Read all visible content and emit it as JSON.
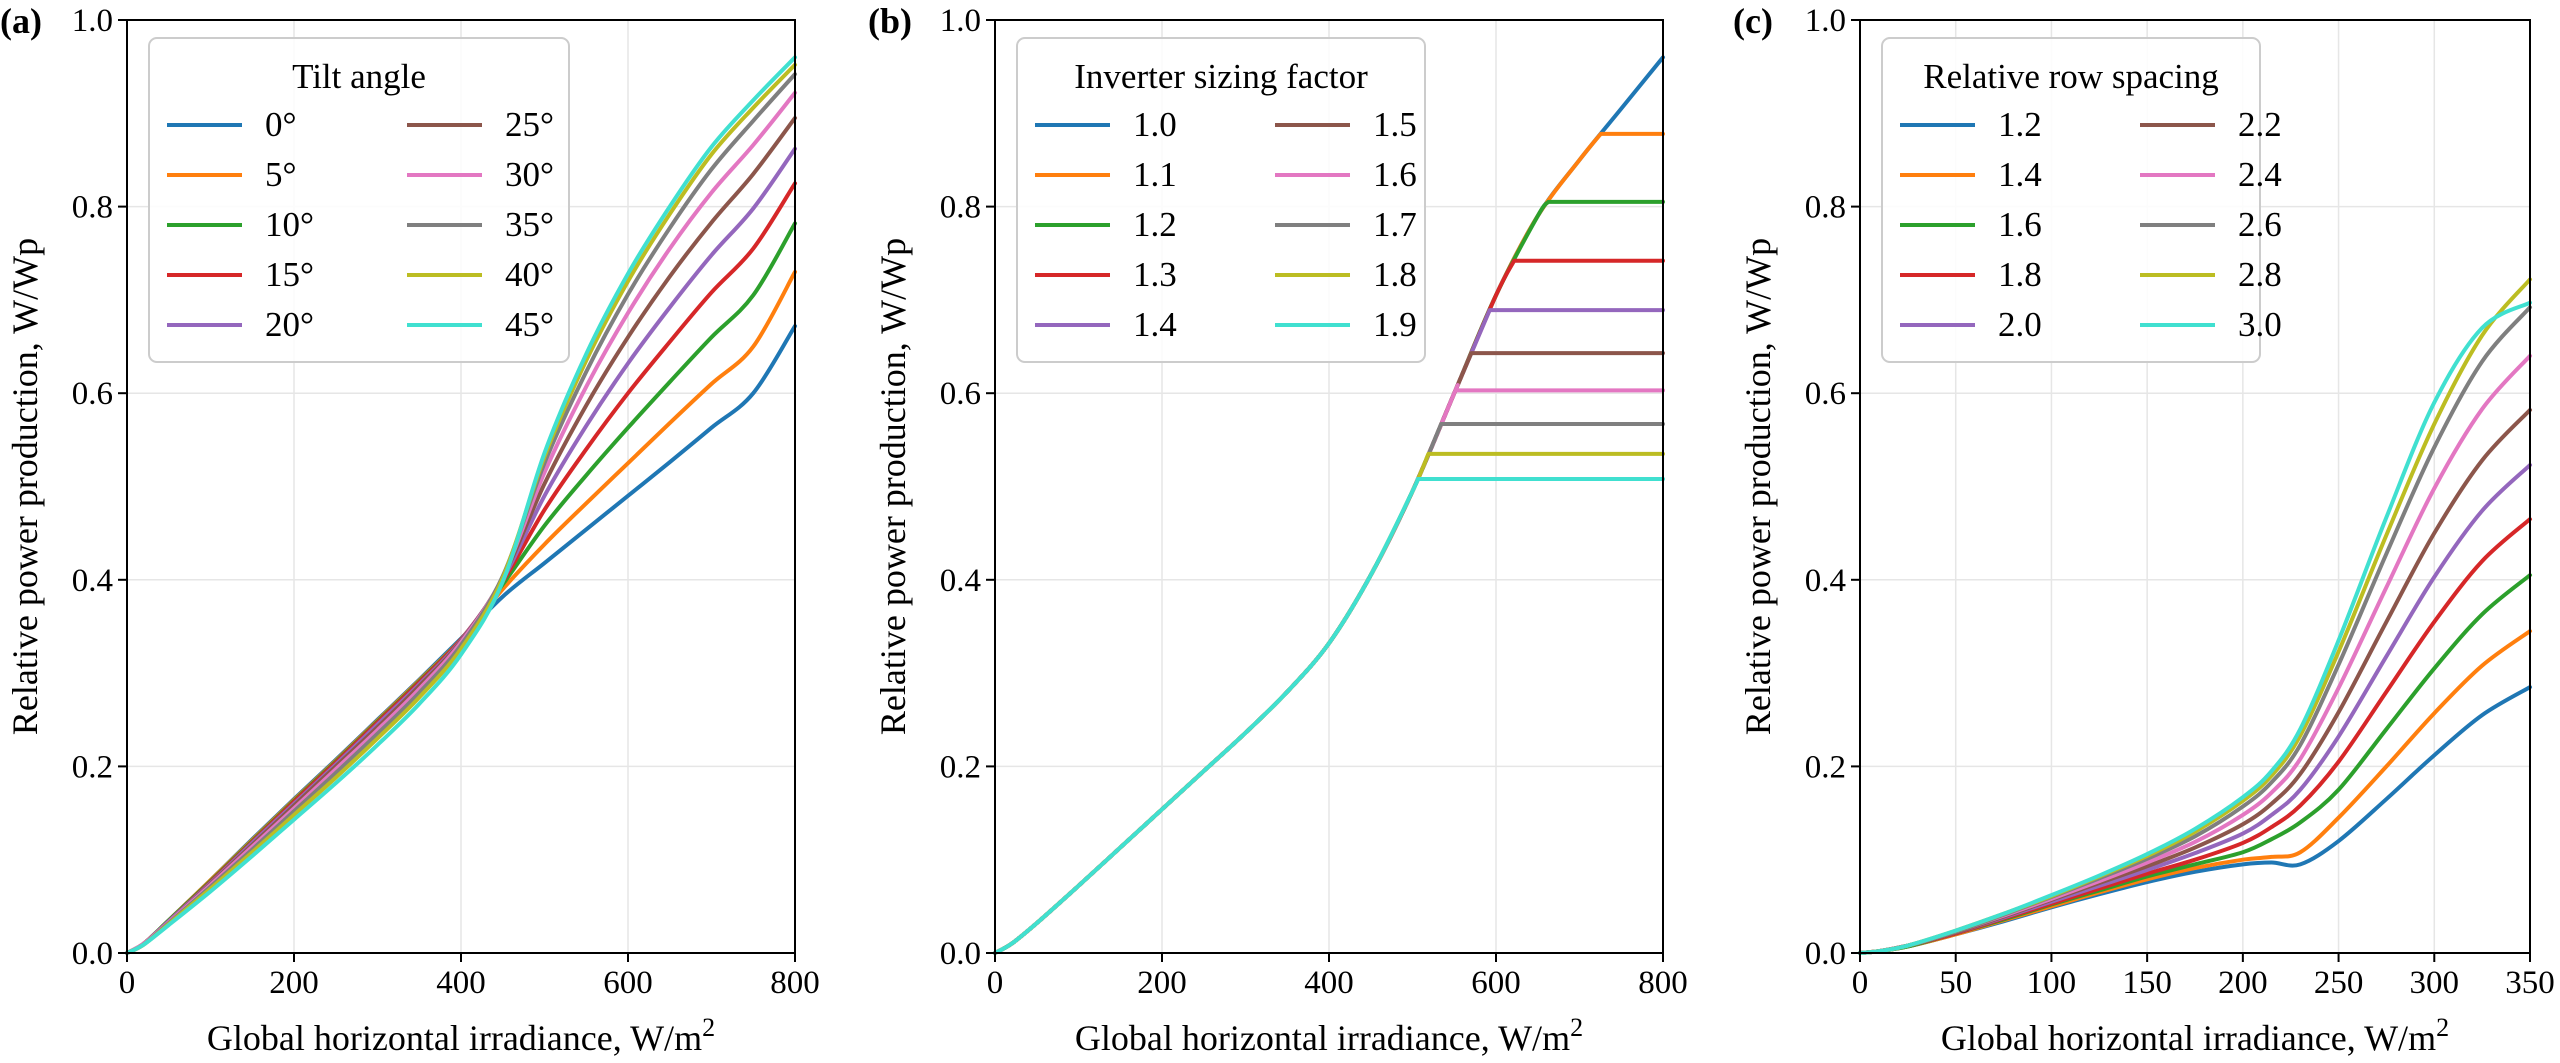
{
  "chart_data": [
    {
      "type": "line",
      "panel_label": "(a)",
      "xlabel": "Global horizontal irradiance, W/m",
      "xlabel_sup": "2",
      "ylabel": "Relative power production, W/Wp",
      "xlim": [
        0,
        800
      ],
      "ylim": [
        0,
        1.0
      ],
      "xticks": [
        "0",
        "200",
        "400",
        "600",
        "800"
      ],
      "yticks": [
        "0.0",
        "0.2",
        "0.4",
        "0.6",
        "0.8",
        "1.0"
      ],
      "grid": true,
      "legend": {
        "title": "Tilt angle",
        "location": "upper-left",
        "columns": 2
      },
      "x": [
        0,
        20,
        50,
        100,
        150,
        200,
        250,
        300,
        350,
        400,
        450,
        500,
        550,
        600,
        650,
        700,
        750,
        800
      ],
      "series": [
        {
          "name": "0°",
          "color": "#1f77b4",
          "values": [
            0,
            0.01,
            0.035,
            0.078,
            0.122,
            0.165,
            0.207,
            0.25,
            0.293,
            0.337,
            0.382,
            0.418,
            0.454,
            0.49,
            0.526,
            0.563,
            0.6,
            0.672
          ]
        },
        {
          "name": "5°",
          "color": "#ff7f0e",
          "values": [
            0,
            0.01,
            0.035,
            0.078,
            0.121,
            0.164,
            0.206,
            0.249,
            0.292,
            0.336,
            0.39,
            0.438,
            0.482,
            0.525,
            0.568,
            0.61,
            0.65,
            0.73
          ]
        },
        {
          "name": "10°",
          "color": "#2ca02c",
          "values": [
            0,
            0.01,
            0.035,
            0.077,
            0.12,
            0.163,
            0.205,
            0.248,
            0.291,
            0.336,
            0.395,
            0.458,
            0.512,
            0.563,
            0.612,
            0.66,
            0.705,
            0.782
          ]
        },
        {
          "name": "15°",
          "color": "#d62728",
          "values": [
            0,
            0.01,
            0.034,
            0.076,
            0.119,
            0.162,
            0.204,
            0.247,
            0.29,
            0.336,
            0.398,
            0.475,
            0.54,
            0.6,
            0.655,
            0.708,
            0.755,
            0.825
          ]
        },
        {
          "name": "20°",
          "color": "#9467bd",
          "values": [
            0,
            0.01,
            0.034,
            0.075,
            0.118,
            0.16,
            0.202,
            0.245,
            0.288,
            0.335,
            0.4,
            0.49,
            0.565,
            0.632,
            0.692,
            0.748,
            0.798,
            0.862
          ]
        },
        {
          "name": "25°",
          "color": "#8c564b",
          "values": [
            0,
            0.01,
            0.033,
            0.074,
            0.116,
            0.158,
            0.2,
            0.242,
            0.286,
            0.334,
            0.402,
            0.503,
            0.587,
            0.66,
            0.725,
            0.783,
            0.835,
            0.895
          ]
        },
        {
          "name": "30°",
          "color": "#e377c2",
          "values": [
            0,
            0.01,
            0.033,
            0.073,
            0.114,
            0.155,
            0.197,
            0.239,
            0.283,
            0.333,
            0.403,
            0.515,
            0.607,
            0.686,
            0.755,
            0.815,
            0.866,
            0.922
          ]
        },
        {
          "name": "35°",
          "color": "#7f7f7f",
          "values": [
            0,
            0.009,
            0.032,
            0.071,
            0.111,
            0.152,
            0.193,
            0.235,
            0.279,
            0.33,
            0.404,
            0.525,
            0.623,
            0.706,
            0.777,
            0.84,
            0.892,
            0.942
          ]
        },
        {
          "name": "40°",
          "color": "#bcbd22",
          "values": [
            0,
            0.009,
            0.031,
            0.069,
            0.108,
            0.148,
            0.188,
            0.23,
            0.274,
            0.326,
            0.402,
            0.532,
            0.635,
            0.72,
            0.792,
            0.856,
            0.906,
            0.952
          ]
        },
        {
          "name": "45°",
          "color": "#40e0d0",
          "values": [
            0,
            0.009,
            0.03,
            0.066,
            0.104,
            0.143,
            0.182,
            0.223,
            0.267,
            0.32,
            0.398,
            0.536,
            0.642,
            0.728,
            0.8,
            0.864,
            0.914,
            0.96
          ]
        }
      ]
    },
    {
      "type": "line",
      "panel_label": "(b)",
      "xlabel": "Global horizontal irradiance, W/m",
      "xlabel_sup": "2",
      "ylabel": "Relative power production, W/Wp",
      "xlim": [
        0,
        800
      ],
      "ylim": [
        0,
        1.0
      ],
      "xticks": [
        "0",
        "200",
        "400",
        "600",
        "800"
      ],
      "yticks": [
        "0.0",
        "0.2",
        "0.4",
        "0.6",
        "0.8",
        "1.0"
      ],
      "grid": true,
      "legend": {
        "title": "Inverter sizing factor",
        "location": "upper-left",
        "columns": 2
      },
      "base_curve": {
        "x": [
          0,
          20,
          50,
          100,
          150,
          200,
          250,
          300,
          350,
          400,
          450,
          500,
          550,
          600,
          650,
          700,
          750,
          800
        ],
        "y": [
          0,
          0.01,
          0.032,
          0.072,
          0.113,
          0.154,
          0.195,
          0.236,
          0.28,
          0.332,
          0.405,
          0.495,
          0.6,
          0.705,
          0.79,
          0.85,
          0.905,
          0.96
        ]
      },
      "series": [
        {
          "name": "1.0",
          "color": "#1f77b4",
          "clip_level": 0.96
        },
        {
          "name": "1.1",
          "color": "#ff7f0e",
          "clip_level": 0.878
        },
        {
          "name": "1.2",
          "color": "#2ca02c",
          "clip_level": 0.805
        },
        {
          "name": "1.3",
          "color": "#d62728",
          "clip_level": 0.742
        },
        {
          "name": "1.4",
          "color": "#9467bd",
          "clip_level": 0.689
        },
        {
          "name": "1.5",
          "color": "#8c564b",
          "clip_level": 0.643
        },
        {
          "name": "1.6",
          "color": "#e377c2",
          "clip_level": 0.603
        },
        {
          "name": "1.7",
          "color": "#7f7f7f",
          "clip_level": 0.567
        },
        {
          "name": "1.8",
          "color": "#bcbd22",
          "clip_level": 0.535
        },
        {
          "name": "1.9",
          "color": "#40e0d0",
          "clip_level": 0.508
        }
      ]
    },
    {
      "type": "line",
      "panel_label": "(c)",
      "xlabel": "Global horizontal irradiance, W/m",
      "xlabel_sup": "2",
      "ylabel": "Relative power production, W/Wp",
      "xlim": [
        0,
        350
      ],
      "ylim": [
        0,
        1.0
      ],
      "xticks": [
        "0",
        "50",
        "100",
        "150",
        "200",
        "250",
        "300",
        "350"
      ],
      "yticks": [
        "0.0",
        "0.2",
        "0.4",
        "0.6",
        "0.8",
        "1.0"
      ],
      "grid": true,
      "legend": {
        "title": "Relative row spacing",
        "location": "upper-left",
        "columns": 2
      },
      "x": [
        0,
        10,
        25,
        50,
        75,
        100,
        125,
        150,
        175,
        200,
        215,
        230,
        250,
        275,
        300,
        325,
        350
      ],
      "series": [
        {
          "name": "1.2",
          "color": "#1f77b4",
          "values": [
            0,
            0.002,
            0.007,
            0.02,
            0.034,
            0.049,
            0.063,
            0.076,
            0.087,
            0.095,
            0.097,
            0.095,
            0.12,
            0.165,
            0.212,
            0.255,
            0.285
          ]
        },
        {
          "name": "1.4",
          "color": "#ff7f0e",
          "values": [
            0,
            0.002,
            0.007,
            0.02,
            0.035,
            0.05,
            0.065,
            0.079,
            0.091,
            0.1,
            0.103,
            0.108,
            0.145,
            0.2,
            0.257,
            0.308,
            0.345
          ]
        },
        {
          "name": "1.6",
          "color": "#2ca02c",
          "values": [
            0,
            0.002,
            0.007,
            0.021,
            0.036,
            0.052,
            0.067,
            0.082,
            0.095,
            0.108,
            0.122,
            0.14,
            0.175,
            0.24,
            0.305,
            0.363,
            0.405
          ]
        },
        {
          "name": "1.8",
          "color": "#d62728",
          "values": [
            0,
            0.002,
            0.008,
            0.021,
            0.037,
            0.053,
            0.069,
            0.085,
            0.1,
            0.118,
            0.135,
            0.158,
            0.205,
            0.28,
            0.355,
            0.42,
            0.465
          ]
        },
        {
          "name": "2.0",
          "color": "#9467bd",
          "values": [
            0,
            0.002,
            0.008,
            0.022,
            0.038,
            0.055,
            0.072,
            0.089,
            0.107,
            0.128,
            0.148,
            0.175,
            0.232,
            0.318,
            0.403,
            0.474,
            0.523
          ]
        },
        {
          "name": "2.2",
          "color": "#8c564b",
          "values": [
            0,
            0.002,
            0.008,
            0.022,
            0.039,
            0.057,
            0.075,
            0.093,
            0.113,
            0.138,
            0.16,
            0.192,
            0.258,
            0.355,
            0.45,
            0.528,
            0.582
          ]
        },
        {
          "name": "2.4",
          "color": "#e377c2",
          "values": [
            0,
            0.002,
            0.008,
            0.023,
            0.04,
            0.058,
            0.077,
            0.097,
            0.119,
            0.148,
            0.172,
            0.208,
            0.284,
            0.392,
            0.498,
            0.583,
            0.64
          ]
        },
        {
          "name": "2.6",
          "color": "#7f7f7f",
          "values": [
            0,
            0.002,
            0.008,
            0.023,
            0.041,
            0.06,
            0.08,
            0.101,
            0.125,
            0.157,
            0.183,
            0.223,
            0.309,
            0.428,
            0.542,
            0.634,
            0.692
          ]
        },
        {
          "name": "2.8",
          "color": "#bcbd22",
          "values": [
            0,
            0.002,
            0.008,
            0.024,
            0.042,
            0.061,
            0.082,
            0.104,
            0.13,
            0.163,
            0.19,
            0.233,
            0.323,
            0.448,
            0.567,
            0.662,
            0.722
          ]
        },
        {
          "name": "3.0",
          "color": "#40e0d0",
          "values": [
            0,
            0.002,
            0.008,
            0.024,
            0.042,
            0.062,
            0.083,
            0.106,
            0.133,
            0.167,
            0.195,
            0.24,
            0.335,
            0.467,
            0.59,
            0.67,
            0.697
          ]
        }
      ]
    }
  ]
}
